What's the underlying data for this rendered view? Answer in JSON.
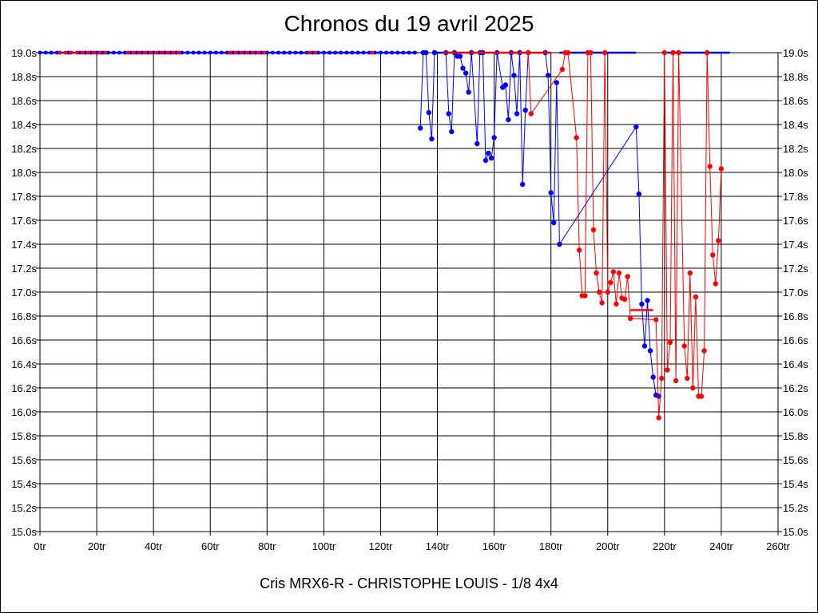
{
  "header": {
    "title": "Chronos du 19 avril 2025"
  },
  "footer": {
    "subtitle": "Cris MRX6-R - CHRISTOPHE LOUIS - 1/8 4x4"
  },
  "chart_data": {
    "type": "line",
    "title": "Chronos du 19 avril 2025",
    "xlabel": "",
    "ylabel": "",
    "xlim": [
      0,
      260
    ],
    "ylim": [
      15.0,
      19.0
    ],
    "x_ticks": [
      "0tr",
      "20tr",
      "40tr",
      "60tr",
      "80tr",
      "100tr",
      "120tr",
      "140tr",
      "160tr",
      "180tr",
      "200tr",
      "220tr",
      "240tr",
      "260tr"
    ],
    "y_ticks": [
      "15.0s",
      "15.2s",
      "15.4s",
      "15.6s",
      "15.8s",
      "16.0s",
      "16.2s",
      "16.4s",
      "16.6s",
      "16.8s",
      "17.0s",
      "17.2s",
      "17.4s",
      "17.6s",
      "17.8s",
      "18.0s",
      "18.2s",
      "18.4s",
      "18.6s",
      "18.8s",
      "19.0s"
    ],
    "grid": true,
    "colors": {
      "blue": "#0000ff",
      "red": "#ff0000"
    },
    "series": [
      {
        "color": "#0000ff",
        "points": [
          [
            134,
            18.37
          ],
          [
            135,
            19.0
          ],
          [
            136,
            19.0
          ],
          [
            137,
            18.5
          ],
          [
            138,
            18.28
          ],
          [
            139,
            19.0
          ],
          [
            143,
            19.0
          ],
          [
            144,
            18.49
          ],
          [
            145,
            18.34
          ],
          [
            146,
            19.0
          ],
          [
            147,
            18.97
          ],
          [
            148,
            18.97
          ],
          [
            149,
            18.87
          ],
          [
            150,
            18.83
          ],
          [
            151,
            18.67
          ],
          [
            152,
            19.0
          ],
          [
            154,
            18.24
          ],
          [
            155,
            19.0
          ],
          [
            156,
            19.0
          ],
          [
            157,
            18.1
          ],
          [
            158,
            18.16
          ],
          [
            159,
            18.12
          ],
          [
            160,
            18.29
          ],
          [
            161,
            19.0
          ],
          [
            163,
            18.71
          ],
          [
            164,
            18.73
          ],
          [
            165,
            18.44
          ],
          [
            166,
            19.0
          ],
          [
            167,
            18.81
          ],
          [
            168,
            18.49
          ],
          [
            169,
            19.0
          ],
          [
            170,
            17.9
          ],
          [
            171,
            18.52
          ],
          [
            172,
            19.0
          ],
          [
            178,
            19.0
          ],
          [
            179,
            18.81
          ],
          [
            180,
            17.83
          ],
          [
            181,
            17.58
          ],
          [
            182,
            18.75
          ],
          [
            183,
            17.4
          ],
          [
            210,
            18.38
          ],
          [
            211,
            17.82
          ],
          [
            212,
            16.9
          ],
          [
            213,
            16.55
          ],
          [
            214,
            16.93
          ],
          [
            215,
            16.51
          ],
          [
            216,
            16.29
          ],
          [
            217,
            16.14
          ],
          [
            218,
            16.13
          ]
        ],
        "flat_segments": [
          [
            0,
            133,
            19.0
          ],
          [
            139,
            143,
            19.0
          ],
          [
            183,
            210,
            19.0
          ],
          [
            221,
            243,
            19.0
          ]
        ],
        "flat_markers": [
          0,
          2,
          4,
          6,
          10,
          14,
          16,
          18,
          20,
          22,
          24,
          26,
          28,
          30,
          32,
          34,
          36,
          38,
          40,
          42,
          44,
          46,
          48,
          50,
          52,
          54,
          56,
          58,
          60,
          62,
          64,
          66,
          68,
          70,
          72,
          74,
          76,
          78,
          80,
          82,
          84,
          86,
          88,
          90,
          92,
          94,
          96,
          98,
          100,
          102,
          104,
          106,
          108,
          110,
          112,
          114,
          116,
          118,
          120,
          122,
          124,
          126,
          128,
          130,
          132
        ]
      },
      {
        "color": "#ff0000",
        "points": [
          [
            172,
            19.0
          ],
          [
            173,
            18.49
          ],
          [
            184,
            18.86
          ],
          [
            185,
            19.0
          ],
          [
            186,
            19.0
          ],
          [
            189,
            18.29
          ],
          [
            190,
            17.35
          ],
          [
            191,
            16.97
          ],
          [
            192,
            16.97
          ],
          [
            193,
            19.0
          ],
          [
            194,
            19.0
          ],
          [
            195,
            17.52
          ],
          [
            196,
            17.16
          ],
          [
            197,
            17.0
          ],
          [
            198,
            16.91
          ],
          [
            199,
            19.0
          ],
          [
            200,
            17.0
          ],
          [
            201,
            17.08
          ],
          [
            202,
            17.17
          ],
          [
            203,
            16.9
          ],
          [
            204,
            17.16
          ],
          [
            205,
            16.95
          ],
          [
            206,
            16.94
          ],
          [
            207,
            17.13
          ],
          [
            208,
            16.78
          ],
          [
            217,
            16.77
          ],
          [
            218,
            15.95
          ],
          [
            219,
            16.28
          ],
          [
            220,
            19.0
          ],
          [
            221,
            16.35
          ],
          [
            222,
            16.58
          ],
          [
            223,
            19.0
          ],
          [
            224,
            16.26
          ],
          [
            225,
            19.0
          ],
          [
            227,
            16.55
          ],
          [
            228,
            16.28
          ],
          [
            229,
            17.16
          ],
          [
            230,
            16.2
          ],
          [
            231,
            16.96
          ],
          [
            232,
            16.13
          ],
          [
            233,
            16.13
          ],
          [
            234,
            16.51
          ],
          [
            235,
            19.0
          ],
          [
            236,
            18.05
          ],
          [
            237,
            17.31
          ],
          [
            238,
            17.07
          ],
          [
            239,
            17.43
          ],
          [
            240,
            18.03
          ]
        ],
        "flat_segments": [
          [
            142,
            180,
            19.0
          ],
          [
            208,
            216,
            16.85
          ]
        ],
        "flat_markers": [
          7,
          9,
          11,
          13,
          15,
          17,
          19,
          21,
          23,
          31,
          33,
          35,
          37,
          39,
          41,
          43,
          45,
          47,
          49,
          67,
          69,
          71,
          73,
          75,
          77,
          79,
          95,
          97,
          117
        ]
      }
    ]
  }
}
